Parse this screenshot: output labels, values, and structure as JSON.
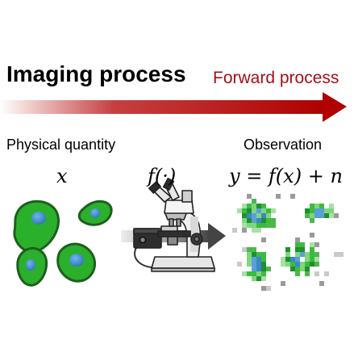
{
  "header": {
    "title": "Imaging process",
    "subtitle": "Forward process",
    "arrow_color": "#b30000"
  },
  "labels": {
    "left": "Physical quantity",
    "right": "Observation"
  },
  "math": {
    "x": "x",
    "f": "f(·)",
    "y": "y = f(x) + n"
  },
  "colors": {
    "cell_body": "#2bb02b",
    "cell_outline": "#1d5f1d",
    "nucleus": "#3a86c8"
  },
  "icons": [
    "microscope-icon",
    "arrow-right-icon"
  ]
}
